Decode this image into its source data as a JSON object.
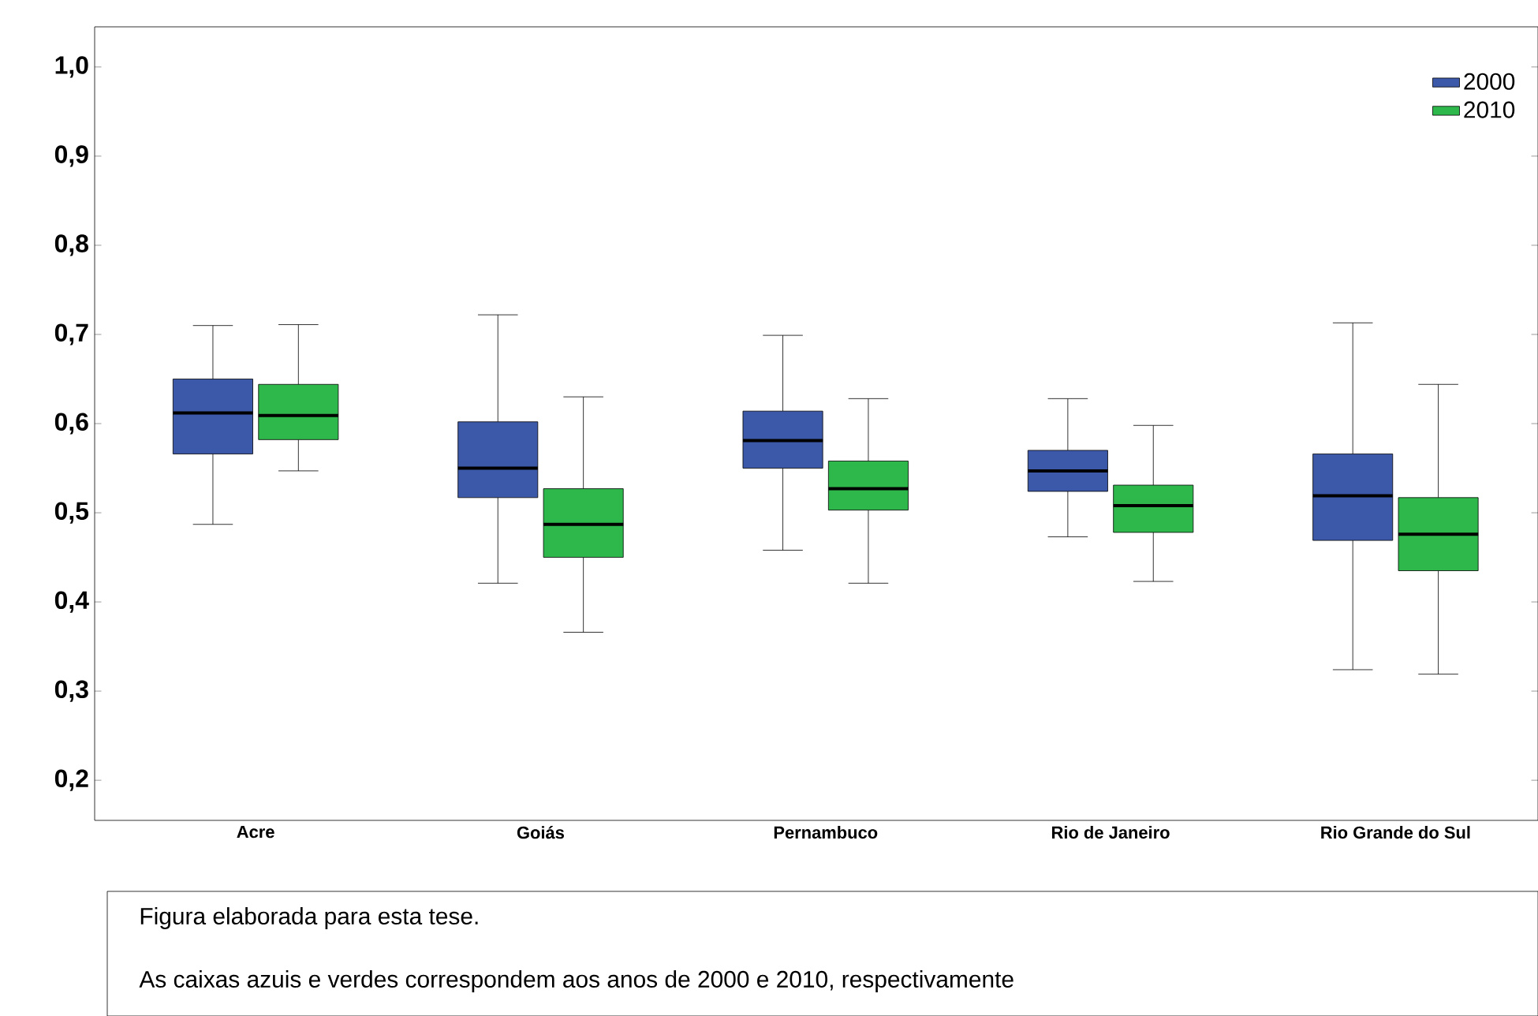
{
  "chart_data": {
    "type": "box",
    "categories": [
      "Acre",
      "Goiás",
      "Pernambuco",
      "Rio de Janeiro",
      "Rio Grande do Sul"
    ],
    "series": [
      {
        "name": "2000",
        "color": "#3c58a8",
        "boxes": [
          {
            "low": 0.487,
            "q1": 0.566,
            "median": 0.612,
            "q3": 0.65,
            "high": 0.71
          },
          {
            "low": 0.421,
            "q1": 0.517,
            "median": 0.55,
            "q3": 0.602,
            "high": 0.722
          },
          {
            "low": 0.458,
            "q1": 0.55,
            "median": 0.581,
            "q3": 0.614,
            "high": 0.699
          },
          {
            "low": 0.473,
            "q1": 0.524,
            "median": 0.547,
            "q3": 0.57,
            "high": 0.628
          },
          {
            "low": 0.324,
            "q1": 0.469,
            "median": 0.519,
            "q3": 0.566,
            "high": 0.713
          }
        ]
      },
      {
        "name": "2010",
        "color": "#2eb84b",
        "boxes": [
          {
            "low": 0.547,
            "q1": 0.582,
            "median": 0.609,
            "q3": 0.644,
            "high": 0.711
          },
          {
            "low": 0.366,
            "q1": 0.45,
            "median": 0.487,
            "q3": 0.527,
            "high": 0.63
          },
          {
            "low": 0.421,
            "q1": 0.503,
            "median": 0.527,
            "q3": 0.558,
            "high": 0.628
          },
          {
            "low": 0.423,
            "q1": 0.478,
            "median": 0.508,
            "q3": 0.531,
            "high": 0.598
          },
          {
            "low": 0.319,
            "q1": 0.435,
            "median": 0.476,
            "q3": 0.517,
            "high": 0.644
          }
        ]
      }
    ],
    "ylim": [
      0.155,
      1.045
    ],
    "yticks": [
      {
        "value": 0.2,
        "label": "0,2"
      },
      {
        "value": 0.3,
        "label": "0,3"
      },
      {
        "value": 0.4,
        "label": "0,4"
      },
      {
        "value": 0.5,
        "label": "0,5"
      },
      {
        "value": 0.6,
        "label": "0,6"
      },
      {
        "value": 0.7,
        "label": "0,7"
      },
      {
        "value": 0.8,
        "label": "0,8"
      },
      {
        "value": 0.9,
        "label": "0,9"
      },
      {
        "value": 1.0,
        "label": "1,0"
      }
    ],
    "legend": "top right",
    "grid": false,
    "annotations": [
      "Figura elaborada para esta tese.",
      "As caixas azuis e verdes correspondem aos anos de 2000 e 2010, respectivamente"
    ]
  }
}
